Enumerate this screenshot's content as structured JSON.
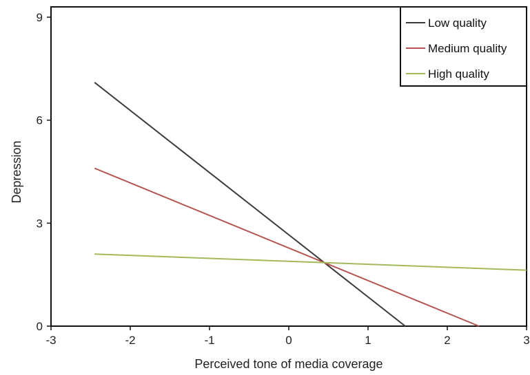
{
  "chart_data": {
    "type": "line",
    "xlabel": "Perceived tone of media coverage",
    "ylabel": "Depression",
    "xlim": [
      -3,
      3
    ],
    "ylim": [
      0,
      9.3
    ],
    "xticks": [
      -3,
      -2,
      -1,
      0,
      1,
      2,
      3
    ],
    "yticks": [
      0,
      3,
      6,
      9
    ],
    "xtick_labels": [
      "-3",
      "-2",
      "-1",
      "0",
      "1",
      "2",
      "3"
    ],
    "ytick_labels": [
      "0",
      "3",
      "6",
      "9"
    ],
    "grid": false,
    "legend_position": "top-right",
    "series": [
      {
        "name": "Low quality",
        "color": "#3a3a3a",
        "x": [
          -2.45,
          1.47
        ],
        "y": [
          7.1,
          0.0
        ]
      },
      {
        "name": "Medium quality",
        "color": "#b5534f",
        "x": [
          -2.45,
          2.4
        ],
        "y": [
          4.6,
          0.0
        ]
      },
      {
        "name": "High quality",
        "color": "#a3ba5a",
        "x": [
          -2.45,
          3.0
        ],
        "y": [
          2.1,
          1.63
        ]
      }
    ]
  }
}
